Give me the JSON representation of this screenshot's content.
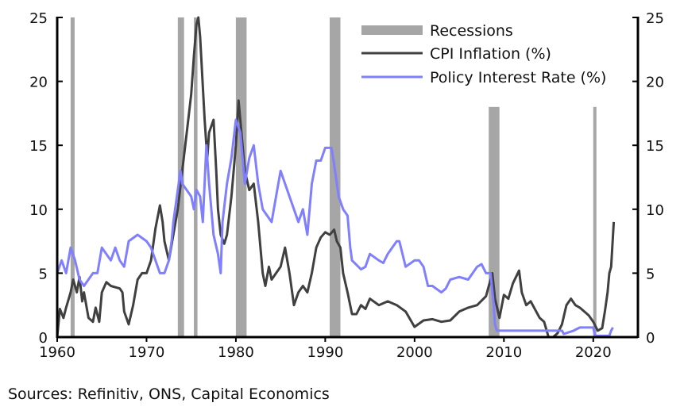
{
  "chart_data": {
    "type": "line",
    "title": "",
    "xlabel": "",
    "ylabel": "",
    "xlim": [
      1960,
      2025
    ],
    "ylim": [
      0,
      25
    ],
    "yticks": [
      0,
      5,
      10,
      15,
      20,
      25
    ],
    "xticks": [
      1960,
      1970,
      1980,
      1990,
      2000,
      2010,
      2020
    ],
    "legend": {
      "placement": "top-right",
      "entries": [
        "Recessions",
        "CPI Inflation (%)",
        "Policy Interest Rate (%)"
      ]
    },
    "colors": {
      "recession": "#a6a6a6",
      "cpi": "#404040",
      "rate": "#7f7fff"
    },
    "recessions": [
      {
        "start": 1961.5,
        "end": 1961.95,
        "top": 25
      },
      {
        "start": 1973.5,
        "end": 1974.2,
        "top": 25
      },
      {
        "start": 1975.3,
        "end": 1975.7,
        "top": 25
      },
      {
        "start": 1980.0,
        "end": 1981.2,
        "top": 25
      },
      {
        "start": 1990.5,
        "end": 1991.7,
        "top": 25
      },
      {
        "start": 2008.3,
        "end": 2009.5,
        "top": 18
      },
      {
        "start": 2020.0,
        "end": 2020.3,
        "top": 18
      }
    ],
    "series": [
      {
        "name": "CPI Inflation (%)",
        "points": [
          [
            1960,
            0
          ],
          [
            1960.3,
            2.2
          ],
          [
            1960.7,
            1.5
          ],
          [
            1961,
            2.3
          ],
          [
            1961.5,
            3.5
          ],
          [
            1961.8,
            4.5
          ],
          [
            1962.2,
            3.5
          ],
          [
            1962.5,
            4.7
          ],
          [
            1962.8,
            2.8
          ],
          [
            1963,
            3.5
          ],
          [
            1963.5,
            1.5
          ],
          [
            1964,
            1.2
          ],
          [
            1964.3,
            2.3
          ],
          [
            1964.7,
            1.2
          ],
          [
            1965,
            3.5
          ],
          [
            1965.5,
            4.3
          ],
          [
            1966,
            4
          ],
          [
            1967,
            3.8
          ],
          [
            1967.3,
            3.5
          ],
          [
            1967.5,
            2
          ],
          [
            1968,
            1
          ],
          [
            1968.5,
            2.5
          ],
          [
            1969,
            4.5
          ],
          [
            1969.5,
            5
          ],
          [
            1970,
            5
          ],
          [
            1970.5,
            6
          ],
          [
            1971,
            8.5
          ],
          [
            1971.5,
            10.3
          ],
          [
            1971.8,
            9
          ],
          [
            1972,
            7.5
          ],
          [
            1972.5,
            6
          ],
          [
            1973,
            8
          ],
          [
            1973.5,
            10
          ],
          [
            1974,
            13
          ],
          [
            1974.5,
            16
          ],
          [
            1975,
            19
          ],
          [
            1975.3,
            22
          ],
          [
            1975.6,
            24.5
          ],
          [
            1975.8,
            25
          ],
          [
            1976,
            23.5
          ],
          [
            1976.5,
            17
          ],
          [
            1976.8,
            14
          ],
          [
            1977,
            16
          ],
          [
            1977.5,
            17
          ],
          [
            1977.8,
            13
          ],
          [
            1978,
            10
          ],
          [
            1978.3,
            8
          ],
          [
            1978.7,
            7.3
          ],
          [
            1979,
            8
          ],
          [
            1979.5,
            11
          ],
          [
            1980,
            15
          ],
          [
            1980.3,
            18.5
          ],
          [
            1980.5,
            17
          ],
          [
            1981,
            13
          ],
          [
            1981.5,
            11.5
          ],
          [
            1982,
            12
          ],
          [
            1982.5,
            9
          ],
          [
            1983,
            5
          ],
          [
            1983.3,
            4
          ],
          [
            1983.7,
            5.5
          ],
          [
            1984,
            4.5
          ],
          [
            1984.5,
            5
          ],
          [
            1985,
            5.5
          ],
          [
            1985.5,
            7
          ],
          [
            1986,
            5
          ],
          [
            1986.5,
            2.5
          ],
          [
            1987,
            3.5
          ],
          [
            1987.5,
            4
          ],
          [
            1988,
            3.5
          ],
          [
            1988.5,
            5
          ],
          [
            1989,
            7
          ],
          [
            1989.5,
            7.8
          ],
          [
            1990,
            8.2
          ],
          [
            1990.5,
            8
          ],
          [
            1991,
            8.4
          ],
          [
            1991.3,
            7.5
          ],
          [
            1991.7,
            7
          ],
          [
            1992,
            5
          ],
          [
            1992.5,
            3.5
          ],
          [
            1993,
            1.8
          ],
          [
            1993.5,
            1.8
          ],
          [
            1994,
            2.5
          ],
          [
            1994.5,
            2.2
          ],
          [
            1995,
            3
          ],
          [
            1996,
            2.5
          ],
          [
            1997,
            2.8
          ],
          [
            1998,
            2.5
          ],
          [
            1999,
            2
          ],
          [
            2000,
            0.8
          ],
          [
            2001,
            1.3
          ],
          [
            2002,
            1.4
          ],
          [
            2003,
            1.2
          ],
          [
            2004,
            1.3
          ],
          [
            2005,
            2
          ],
          [
            2006,
            2.3
          ],
          [
            2007,
            2.5
          ],
          [
            2008,
            3.2
          ],
          [
            2008.7,
            5
          ],
          [
            2009,
            3
          ],
          [
            2009.5,
            1.5
          ],
          [
            2010,
            3.3
          ],
          [
            2010.5,
            3
          ],
          [
            2011,
            4.2
          ],
          [
            2011.7,
            5.2
          ],
          [
            2012,
            3.5
          ],
          [
            2012.5,
            2.5
          ],
          [
            2013,
            2.8
          ],
          [
            2014,
            1.5
          ],
          [
            2014.5,
            1.2
          ],
          [
            2015,
            0
          ],
          [
            2015.5,
            0
          ],
          [
            2016,
            0.3
          ],
          [
            2016.5,
            1
          ],
          [
            2017,
            2.5
          ],
          [
            2017.5,
            3
          ],
          [
            2018,
            2.5
          ],
          [
            2018.5,
            2.3
          ],
          [
            2019,
            2
          ],
          [
            2019.5,
            1.7
          ],
          [
            2020,
            1.2
          ],
          [
            2020.5,
            0.5
          ],
          [
            2021,
            0.7
          ],
          [
            2021.3,
            2
          ],
          [
            2021.6,
            3.5
          ],
          [
            2021.8,
            5
          ],
          [
            2022,
            5.5
          ],
          [
            2022.3,
            9
          ]
        ]
      },
      {
        "name": "Policy Interest Rate (%)",
        "points": [
          [
            1960,
            5
          ],
          [
            1960.5,
            6
          ],
          [
            1961,
            5
          ],
          [
            1961.5,
            7
          ],
          [
            1962,
            6
          ],
          [
            1962.5,
            4.5
          ],
          [
            1963,
            4
          ],
          [
            1964,
            5
          ],
          [
            1964.5,
            5
          ],
          [
            1965,
            7
          ],
          [
            1966,
            6
          ],
          [
            1966.5,
            7
          ],
          [
            1967,
            6
          ],
          [
            1967.5,
            5.5
          ],
          [
            1968,
            7.5
          ],
          [
            1969,
            8
          ],
          [
            1970,
            7.5
          ],
          [
            1970.5,
            7
          ],
          [
            1971,
            6
          ],
          [
            1971.5,
            5
          ],
          [
            1972,
            5
          ],
          [
            1972.5,
            6
          ],
          [
            1972.8,
            7.5
          ],
          [
            1973,
            9
          ],
          [
            1973.5,
            11.5
          ],
          [
            1973.8,
            13
          ],
          [
            1974,
            12
          ],
          [
            1975,
            11
          ],
          [
            1975.3,
            10
          ],
          [
            1975.6,
            11.5
          ],
          [
            1976,
            11
          ],
          [
            1976.3,
            9
          ],
          [
            1976.7,
            15
          ],
          [
            1977,
            12
          ],
          [
            1977.5,
            8
          ],
          [
            1978,
            6.5
          ],
          [
            1978.3,
            5
          ],
          [
            1978.5,
            9
          ],
          [
            1979,
            12
          ],
          [
            1979.5,
            14
          ],
          [
            1980,
            17
          ],
          [
            1980.5,
            16
          ],
          [
            1981,
            12
          ],
          [
            1981.5,
            14
          ],
          [
            1982,
            15
          ],
          [
            1982.5,
            12
          ],
          [
            1983,
            10
          ],
          [
            1983.5,
            9.5
          ],
          [
            1984,
            9
          ],
          [
            1984.5,
            11
          ],
          [
            1985,
            13
          ],
          [
            1985.5,
            12
          ],
          [
            1986,
            11
          ],
          [
            1986.5,
            10
          ],
          [
            1987,
            9
          ],
          [
            1987.5,
            10
          ],
          [
            1988,
            8
          ],
          [
            1988.5,
            12
          ],
          [
            1989,
            13.8
          ],
          [
            1989.5,
            13.8
          ],
          [
            1990,
            14.8
          ],
          [
            1990.7,
            14.8
          ],
          [
            1991,
            13.5
          ],
          [
            1991.5,
            11
          ],
          [
            1992,
            10
          ],
          [
            1992.5,
            9.5
          ],
          [
            1992.8,
            7
          ],
          [
            1993,
            6
          ],
          [
            1994,
            5.3
          ],
          [
            1994.5,
            5.5
          ],
          [
            1995,
            6.5
          ],
          [
            1996,
            6
          ],
          [
            1996.5,
            5.8
          ],
          [
            1997,
            6.5
          ],
          [
            1998,
            7.5
          ],
          [
            1998.3,
            7.5
          ],
          [
            1999,
            5.5
          ],
          [
            2000,
            6
          ],
          [
            2000.5,
            6
          ],
          [
            2001,
            5.5
          ],
          [
            2001.5,
            4
          ],
          [
            2002,
            4
          ],
          [
            2003,
            3.5
          ],
          [
            2003.5,
            3.8
          ],
          [
            2004,
            4.5
          ],
          [
            2005,
            4.7
          ],
          [
            2006,
            4.5
          ],
          [
            2007,
            5.5
          ],
          [
            2007.5,
            5.7
          ],
          [
            2008,
            5
          ],
          [
            2008.5,
            5
          ],
          [
            2008.8,
            3
          ],
          [
            2009,
            1
          ],
          [
            2009.2,
            0.5
          ],
          [
            2016.5,
            0.5
          ],
          [
            2016.7,
            0.25
          ],
          [
            2017.8,
            0.5
          ],
          [
            2018.5,
            0.75
          ],
          [
            2020,
            0.75
          ],
          [
            2020.2,
            0.1
          ],
          [
            2021.8,
            0.1
          ],
          [
            2022,
            0.5
          ],
          [
            2022.2,
            0.75
          ]
        ]
      }
    ]
  },
  "source": "Sources: Refinitiv, ONS, Capital Economics"
}
